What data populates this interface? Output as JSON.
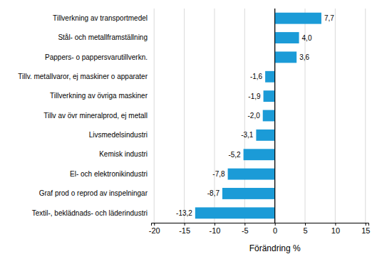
{
  "chart_data": {
    "type": "bar",
    "orientation": "horizontal",
    "categories": [
      "Tillverkning av transportmedel",
      "Stål- och metallframställning",
      "Pappers- o pappersvarutillverkn.",
      "Tillv. metallvaror, ej maskiner o apparater",
      "Tillverkning av övriga maskiner",
      "Tillv av övr mineralprod, ej metall",
      "Livsmedelsindustri",
      "Kemisk industri",
      "El- och elektronikindustri",
      "Graf prod o reprod av inspelningar",
      "Textil-, beklädnads- och läderindustri"
    ],
    "values": [
      7.7,
      4.0,
      3.6,
      -1.6,
      -1.9,
      -2.0,
      -3.1,
      -5.2,
      -7.8,
      -8.7,
      -13.2
    ],
    "value_labels": [
      "7,7",
      "4,0",
      "3,6",
      "-1,6",
      "-1,9",
      "-2,0",
      "-3,1",
      "-5,2",
      "-7,8",
      "-8,7",
      "-13,2"
    ],
    "data_labels": true,
    "color": "#1b9bd7",
    "xlabel": "Förändring %",
    "xlim": [
      -20.5,
      15.5
    ],
    "xticks": [
      -20,
      -15,
      -10,
      -5,
      0,
      5,
      10,
      15
    ],
    "grid": true
  }
}
